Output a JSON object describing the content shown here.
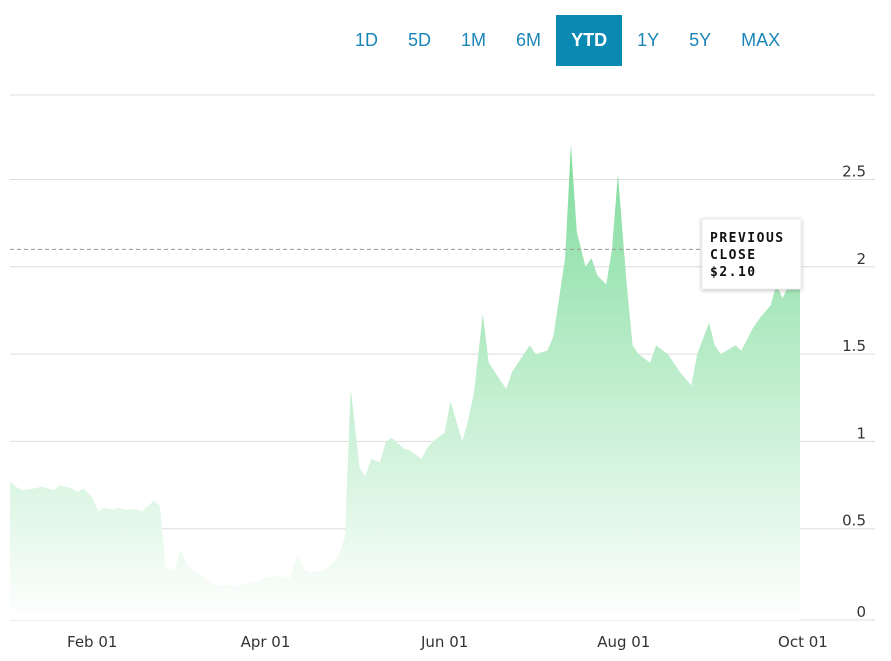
{
  "range_selector": {
    "buttons": [
      {
        "label": "1D",
        "active": false
      },
      {
        "label": "5D",
        "active": false
      },
      {
        "label": "1M",
        "active": false
      },
      {
        "label": "6M",
        "active": false
      },
      {
        "label": "YTD",
        "active": true
      },
      {
        "label": "1Y",
        "active": false
      },
      {
        "label": "5Y",
        "active": false
      },
      {
        "label": "MAX",
        "active": false
      }
    ]
  },
  "previous_close": {
    "line1": "PREVIOUS",
    "line2": "CLOSE",
    "value_label": "$2.10",
    "value": 2.1
  },
  "colors": {
    "fill_top": "#7fdc9c",
    "fill_bottom": "#ffffff",
    "accent": "#0a8ab3",
    "grid": "#dddddd",
    "close_line": "#999999"
  },
  "chart_data": {
    "type": "area",
    "x_tick_labels": [
      "Feb 01",
      "Apr 01",
      "Jun 01",
      "Aug 01",
      "Oct 01"
    ],
    "x_tick_dates": [
      "2021-02-01",
      "2021-04-01",
      "2021-06-01",
      "2021-08-01",
      "2021-10-01"
    ],
    "y_tick_labels": [
      "0",
      "0.5",
      "1",
      "1.5",
      "2",
      "2.5"
    ],
    "y_ticks": [
      0,
      0.5,
      1,
      1.5,
      2,
      2.5
    ],
    "ylim": [
      0,
      3
    ],
    "xlim": [
      "2021-01-04",
      "2021-09-30"
    ],
    "grid": true,
    "series": [
      {
        "x": [
          "2021-01-04",
          "2021-01-06",
          "2021-01-08",
          "2021-01-12",
          "2021-01-15",
          "2021-01-19",
          "2021-01-21",
          "2021-01-25",
          "2021-01-27",
          "2021-01-29",
          "2021-02-01",
          "2021-02-03",
          "2021-02-05",
          "2021-02-08",
          "2021-02-10",
          "2021-02-12",
          "2021-02-16",
          "2021-02-18",
          "2021-02-22",
          "2021-02-24",
          "2021-02-26",
          "2021-03-01",
          "2021-03-03",
          "2021-03-05",
          "2021-03-08",
          "2021-03-10",
          "2021-03-12",
          "2021-03-15",
          "2021-03-17",
          "2021-03-19",
          "2021-03-22",
          "2021-03-24",
          "2021-03-26",
          "2021-03-30",
          "2021-04-01",
          "2021-04-05",
          "2021-04-07",
          "2021-04-09",
          "2021-04-12",
          "2021-04-14",
          "2021-04-16",
          "2021-04-20",
          "2021-04-22",
          "2021-04-26",
          "2021-04-28",
          "2021-04-30",
          "2021-05-03",
          "2021-05-05",
          "2021-05-07",
          "2021-05-10",
          "2021-05-12",
          "2021-05-14",
          "2021-05-18",
          "2021-05-20",
          "2021-05-24",
          "2021-05-26",
          "2021-05-28",
          "2021-06-01",
          "2021-06-03",
          "2021-06-07",
          "2021-06-09",
          "2021-06-11",
          "2021-06-14",
          "2021-06-16",
          "2021-06-18",
          "2021-06-22",
          "2021-06-24",
          "2021-06-28",
          "2021-06-30",
          "2021-07-02",
          "2021-07-06",
          "2021-07-08",
          "2021-07-12",
          "2021-07-14",
          "2021-07-16",
          "2021-07-19",
          "2021-07-21",
          "2021-07-23",
          "2021-07-26",
          "2021-07-28",
          "2021-07-30",
          "2021-08-02",
          "2021-08-04",
          "2021-08-06",
          "2021-08-10",
          "2021-08-12",
          "2021-08-16",
          "2021-08-18",
          "2021-08-20",
          "2021-08-24",
          "2021-08-26",
          "2021-08-30",
          "2021-09-01",
          "2021-09-03",
          "2021-09-08",
          "2021-09-10",
          "2021-09-14",
          "2021-09-16",
          "2021-09-20",
          "2021-09-22",
          "2021-09-24",
          "2021-09-28",
          "2021-09-30"
        ],
        "y": [
          0.77,
          0.74,
          0.72,
          0.73,
          0.74,
          0.72,
          0.75,
          0.73,
          0.71,
          0.73,
          0.68,
          0.6,
          0.62,
          0.61,
          0.62,
          0.61,
          0.61,
          0.6,
          0.66,
          0.63,
          0.28,
          0.26,
          0.38,
          0.3,
          0.25,
          0.24,
          0.2,
          0.18,
          0.17,
          0.18,
          0.17,
          0.18,
          0.19,
          0.2,
          0.22,
          0.23,
          0.22,
          0.21,
          0.35,
          0.27,
          0.25,
          0.26,
          0.27,
          0.35,
          0.45,
          1.3,
          0.85,
          0.8,
          0.9,
          0.88,
          1.0,
          1.02,
          0.96,
          0.95,
          0.9,
          0.96,
          1.0,
          1.05,
          1.23,
          1.0,
          1.12,
          1.28,
          1.73,
          1.45,
          1.4,
          1.3,
          1.4,
          1.5,
          1.55,
          1.5,
          1.52,
          1.6,
          2.05,
          2.7,
          2.2,
          2.0,
          2.05,
          1.95,
          1.9,
          2.1,
          2.53,
          1.9,
          1.55,
          1.5,
          1.45,
          1.55,
          1.5,
          1.45,
          1.4,
          1.32,
          1.5,
          1.68,
          1.55,
          1.5,
          1.55,
          1.52,
          1.65,
          1.7,
          1.78,
          1.9,
          1.82,
          1.95,
          2.02
        ]
      }
    ]
  }
}
